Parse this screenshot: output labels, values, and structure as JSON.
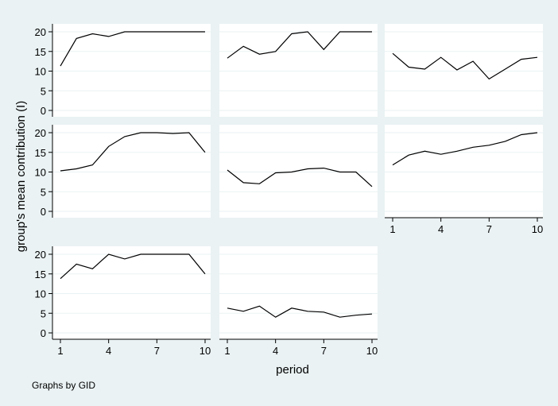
{
  "figure": {
    "ylabel": "group's mean contribution (I)",
    "xlabel": "period",
    "note": "Graphs by GID",
    "background": "#eaf2f3",
    "panel_background": "#ffffff",
    "line_color": "#000000",
    "grid_color": "#eaf2f3"
  },
  "chart_data": [
    {
      "type": "line",
      "x": [
        1,
        2,
        3,
        4,
        5,
        6,
        7,
        8,
        9,
        10
      ],
      "y": [
        11.3,
        18.3,
        19.5,
        18.8,
        20,
        20,
        20,
        20,
        20,
        20
      ],
      "xlim": [
        1,
        10
      ],
      "ylim": [
        0,
        20
      ],
      "xticks": [
        1,
        4,
        7,
        10
      ],
      "yticks": [
        0,
        5,
        10,
        15,
        20
      ],
      "grid": true
    },
    {
      "type": "line",
      "x": [
        1,
        2,
        3,
        4,
        5,
        6,
        7,
        8,
        9,
        10
      ],
      "y": [
        13.3,
        16.3,
        14.3,
        15.0,
        19.5,
        20.0,
        15.5,
        20.0,
        20.0,
        20.0
      ],
      "xlim": [
        1,
        10
      ],
      "ylim": [
        0,
        20
      ],
      "xticks": [
        1,
        4,
        7,
        10
      ],
      "yticks": [
        0,
        5,
        10,
        15,
        20
      ],
      "grid": true
    },
    {
      "type": "line",
      "x": [
        1,
        2,
        3,
        4,
        5,
        6,
        7,
        8,
        9,
        10
      ],
      "y": [
        14.5,
        11.0,
        10.5,
        13.5,
        10.3,
        12.5,
        8.0,
        10.5,
        13.0,
        13.5
      ],
      "xlim": [
        1,
        10
      ],
      "ylim": [
        0,
        20
      ],
      "xticks": [
        1,
        4,
        7,
        10
      ],
      "yticks": [
        0,
        5,
        10,
        15,
        20
      ],
      "grid": true
    },
    {
      "type": "line",
      "x": [
        1,
        2,
        3,
        4,
        5,
        6,
        7,
        8,
        9,
        10
      ],
      "y": [
        10.3,
        10.8,
        11.8,
        16.5,
        19.0,
        20.0,
        20.0,
        19.8,
        20.0,
        15.0
      ],
      "xlim": [
        1,
        10
      ],
      "ylim": [
        0,
        20
      ],
      "xticks": [
        1,
        4,
        7,
        10
      ],
      "yticks": [
        0,
        5,
        10,
        15,
        20
      ],
      "grid": true
    },
    {
      "type": "line",
      "x": [
        1,
        2,
        3,
        4,
        5,
        6,
        7,
        8,
        9,
        10
      ],
      "y": [
        10.5,
        7.3,
        7.0,
        9.8,
        10.0,
        10.8,
        11.0,
        10.0,
        10.0,
        6.3
      ],
      "xlim": [
        1,
        10
      ],
      "ylim": [
        0,
        20
      ],
      "xticks": [
        1,
        4,
        7,
        10
      ],
      "yticks": [
        0,
        5,
        10,
        15,
        20
      ],
      "grid": true
    },
    {
      "type": "line",
      "x": [
        1,
        2,
        3,
        4,
        5,
        6,
        7,
        8,
        9,
        10
      ],
      "y": [
        11.8,
        14.3,
        15.3,
        14.5,
        15.3,
        16.3,
        16.8,
        17.8,
        19.5,
        20.0
      ],
      "xlim": [
        1,
        10
      ],
      "ylim": [
        0,
        20
      ],
      "xticks": [
        1,
        4,
        7,
        10
      ],
      "yticks": [
        0,
        5,
        10,
        15,
        20
      ],
      "grid": true
    },
    {
      "type": "line",
      "x": [
        1,
        2,
        3,
        4,
        5,
        6,
        7,
        8,
        9,
        10
      ],
      "y": [
        13.8,
        17.5,
        16.3,
        20.0,
        18.8,
        20.0,
        20.0,
        20.0,
        20.0,
        15.0
      ],
      "xlim": [
        1,
        10
      ],
      "ylim": [
        0,
        20
      ],
      "xticks": [
        1,
        4,
        7,
        10
      ],
      "yticks": [
        0,
        5,
        10,
        15,
        20
      ],
      "grid": true
    },
    {
      "type": "line",
      "x": [
        1,
        2,
        3,
        4,
        5,
        6,
        7,
        8,
        9,
        10
      ],
      "y": [
        6.3,
        5.5,
        6.8,
        4.0,
        6.3,
        5.5,
        5.3,
        4.0,
        4.5,
        4.8
      ],
      "xlim": [
        1,
        10
      ],
      "ylim": [
        0,
        20
      ],
      "xticks": [
        1,
        4,
        7,
        10
      ],
      "yticks": [
        0,
        5,
        10,
        15,
        20
      ],
      "grid": true
    }
  ]
}
